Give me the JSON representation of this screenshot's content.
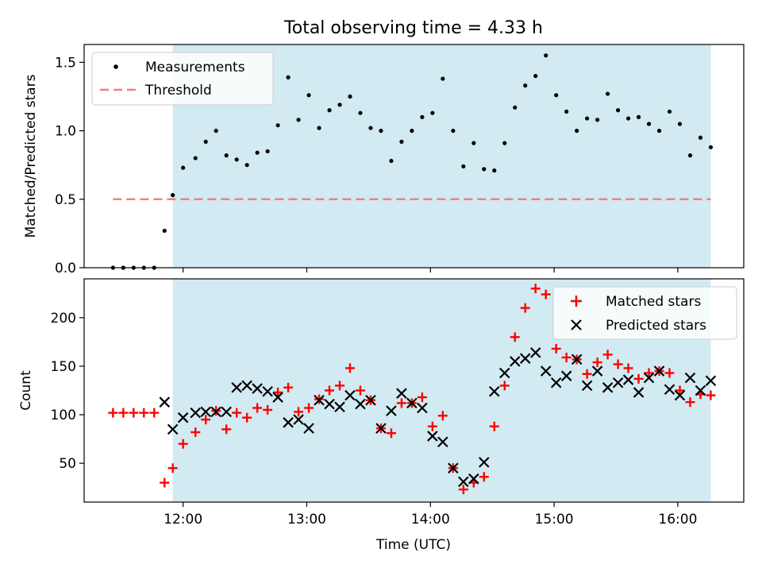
{
  "chart_data": [
    {
      "type": "scatter",
      "title": "Total observing time = 4.33 h",
      "xlabel": "",
      "ylabel": "Matched/Predicted stars",
      "xlim": [
        "11:12",
        "16:32"
      ],
      "ylim": [
        0,
        1.63
      ],
      "yticks": [
        0.0,
        0.5,
        1.0,
        1.5
      ],
      "ytick_labels": [
        "0.0",
        "0.5",
        "1.0",
        "1.5"
      ],
      "grid": false,
      "legend_position": "upper-left",
      "shaded_region": {
        "start": "11:55",
        "end": "16:16",
        "color": "#add8e6"
      },
      "threshold": {
        "name": "Threshold",
        "y": 0.5,
        "x_start": "11:26",
        "x_end": "16:16",
        "color": "#f08080"
      },
      "series": [
        {
          "name": "Measurements",
          "color": "#000000",
          "marker": "dot",
          "points": [
            [
              "11:26",
              0
            ],
            [
              "11:31",
              0
            ],
            [
              "11:36",
              0
            ],
            [
              "11:41",
              0
            ],
            [
              "11:46",
              0
            ],
            [
              "11:51",
              0.27
            ],
            [
              "11:55",
              0.53
            ],
            [
              "12:00",
              0.73
            ],
            [
              "12:06",
              0.8
            ],
            [
              "12:11",
              0.92
            ],
            [
              "12:16",
              1.0
            ],
            [
              "12:21",
              0.82
            ],
            [
              "12:26",
              0.79
            ],
            [
              "12:31",
              0.75
            ],
            [
              "12:36",
              0.84
            ],
            [
              "12:41",
              0.85
            ],
            [
              "12:46",
              1.04
            ],
            [
              "12:51",
              1.39
            ],
            [
              "12:56",
              1.08
            ],
            [
              "13:01",
              1.26
            ],
            [
              "13:06",
              1.02
            ],
            [
              "13:11",
              1.15
            ],
            [
              "13:16",
              1.19
            ],
            [
              "13:21",
              1.25
            ],
            [
              "13:26",
              1.13
            ],
            [
              "13:31",
              1.02
            ],
            [
              "13:36",
              1.0
            ],
            [
              "13:41",
              0.78
            ],
            [
              "13:46",
              0.92
            ],
            [
              "13:51",
              1.0
            ],
            [
              "13:56",
              1.1
            ],
            [
              "14:01",
              1.13
            ],
            [
              "14:06",
              1.38
            ],
            [
              "14:11",
              1.0
            ],
            [
              "14:16",
              0.74
            ],
            [
              "14:21",
              0.91
            ],
            [
              "14:26",
              0.72
            ],
            [
              "14:31",
              0.71
            ],
            [
              "14:36",
              0.91
            ],
            [
              "14:41",
              1.17
            ],
            [
              "14:46",
              1.33
            ],
            [
              "14:51",
              1.4
            ],
            [
              "14:56",
              1.55
            ],
            [
              "15:01",
              1.26
            ],
            [
              "15:06",
              1.14
            ],
            [
              "15:11",
              1.0
            ],
            [
              "15:16",
              1.09
            ],
            [
              "15:21",
              1.08
            ],
            [
              "15:26",
              1.27
            ],
            [
              "15:31",
              1.15
            ],
            [
              "15:36",
              1.09
            ],
            [
              "15:41",
              1.1
            ],
            [
              "15:46",
              1.05
            ],
            [
              "15:51",
              1.0
            ],
            [
              "15:56",
              1.14
            ],
            [
              "16:01",
              1.05
            ],
            [
              "16:06",
              0.82
            ],
            [
              "16:11",
              0.95
            ],
            [
              "16:16",
              0.88
            ]
          ]
        }
      ]
    },
    {
      "type": "scatter",
      "title": "",
      "xlabel": "Time (UTC)",
      "ylabel": "Count",
      "xlim": [
        "11:12",
        "16:32"
      ],
      "ylim": [
        10,
        240
      ],
      "yticks": [
        50,
        100,
        150,
        200
      ],
      "ytick_labels": [
        "50",
        "100",
        "150",
        "200"
      ],
      "xticks": [
        "12:00",
        "13:00",
        "14:00",
        "15:00",
        "16:00"
      ],
      "xtick_labels": [
        "12:00",
        "13:00",
        "14:00",
        "15:00",
        "16:00"
      ],
      "grid": false,
      "legend_position": "upper-right",
      "shaded_region": {
        "start": "11:55",
        "end": "16:16",
        "color": "#add8e6"
      },
      "series": [
        {
          "name": "Matched stars",
          "color": "#ff0000",
          "marker": "plus",
          "points": [
            [
              "11:26",
              102
            ],
            [
              "11:31",
              102
            ],
            [
              "11:36",
              102
            ],
            [
              "11:41",
              102
            ],
            [
              "11:46",
              102
            ],
            [
              "11:51",
              30
            ],
            [
              "11:55",
              45
            ],
            [
              "12:00",
              70
            ],
            [
              "12:06",
              82
            ],
            [
              "12:11",
              95
            ],
            [
              "12:16",
              104
            ],
            [
              "12:21",
              85
            ],
            [
              "12:26",
              102
            ],
            [
              "12:31",
              97
            ],
            [
              "12:36",
              107
            ],
            [
              "12:41",
              105
            ],
            [
              "12:46",
              123
            ],
            [
              "12:51",
              128
            ],
            [
              "12:56",
              103
            ],
            [
              "13:01",
              107
            ],
            [
              "13:06",
              116
            ],
            [
              "13:11",
              125
            ],
            [
              "13:16",
              130
            ],
            [
              "13:21",
              148
            ],
            [
              "13:26",
              125
            ],
            [
              "13:31",
              115
            ],
            [
              "13:36",
              86
            ],
            [
              "13:41",
              81
            ],
            [
              "13:46",
              112
            ],
            [
              "13:51",
              112
            ],
            [
              "13:56",
              118
            ],
            [
              "14:01",
              88
            ],
            [
              "14:06",
              99
            ],
            [
              "14:11",
              45
            ],
            [
              "14:16",
              23
            ],
            [
              "14:21",
              30
            ],
            [
              "14:26",
              36
            ],
            [
              "14:31",
              88
            ],
            [
              "14:36",
              130
            ],
            [
              "14:41",
              180
            ],
            [
              "14:46",
              210
            ],
            [
              "14:51",
              230
            ],
            [
              "14:56",
              224
            ],
            [
              "15:01",
              168
            ],
            [
              "15:06",
              159
            ],
            [
              "15:11",
              157
            ],
            [
              "15:16",
              142
            ],
            [
              "15:21",
              154
            ],
            [
              "15:26",
              162
            ],
            [
              "15:31",
              152
            ],
            [
              "15:36",
              148
            ],
            [
              "15:41",
              137
            ],
            [
              "15:46",
              143
            ],
            [
              "15:51",
              145
            ],
            [
              "15:56",
              143
            ],
            [
              "16:01",
              125
            ],
            [
              "16:06",
              113
            ],
            [
              "16:11",
              121
            ],
            [
              "16:16",
              120
            ]
          ]
        },
        {
          "name": "Predicted stars",
          "color": "#000000",
          "marker": "cross",
          "points": [
            [
              "11:51",
              113
            ],
            [
              "11:55",
              85
            ],
            [
              "12:00",
              97
            ],
            [
              "12:06",
              102
            ],
            [
              "12:11",
              103
            ],
            [
              "12:16",
              103
            ],
            [
              "12:21",
              103
            ],
            [
              "12:26",
              128
            ],
            [
              "12:31",
              130
            ],
            [
              "12:36",
              127
            ],
            [
              "12:41",
              124
            ],
            [
              "12:46",
              118
            ],
            [
              "12:51",
              92
            ],
            [
              "12:56",
              95
            ],
            [
              "13:01",
              86
            ],
            [
              "13:06",
              115
            ],
            [
              "13:11",
              111
            ],
            [
              "13:16",
              108
            ],
            [
              "13:21",
              120
            ],
            [
              "13:26",
              111
            ],
            [
              "13:31",
              115
            ],
            [
              "13:36",
              86
            ],
            [
              "13:41",
              104
            ],
            [
              "13:46",
              122
            ],
            [
              "13:51",
              112
            ],
            [
              "13:56",
              107
            ],
            [
              "14:01",
              78
            ],
            [
              "14:06",
              72
            ],
            [
              "14:11",
              45
            ],
            [
              "14:16",
              31
            ],
            [
              "14:21",
              34
            ],
            [
              "14:26",
              51
            ],
            [
              "14:31",
              124
            ],
            [
              "14:36",
              143
            ],
            [
              "14:41",
              155
            ],
            [
              "14:46",
              158
            ],
            [
              "14:51",
              164
            ],
            [
              "14:56",
              145
            ],
            [
              "15:01",
              133
            ],
            [
              "15:06",
              140
            ],
            [
              "15:11",
              157
            ],
            [
              "15:16",
              130
            ],
            [
              "15:21",
              145
            ],
            [
              "15:26",
              128
            ],
            [
              "15:31",
              133
            ],
            [
              "15:36",
              136
            ],
            [
              "15:41",
              123
            ],
            [
              "15:46",
              138
            ],
            [
              "15:51",
              145
            ],
            [
              "15:56",
              126
            ],
            [
              "16:01",
              120
            ],
            [
              "16:06",
              138
            ],
            [
              "16:11",
              125
            ],
            [
              "16:16",
              135
            ]
          ]
        }
      ]
    }
  ]
}
